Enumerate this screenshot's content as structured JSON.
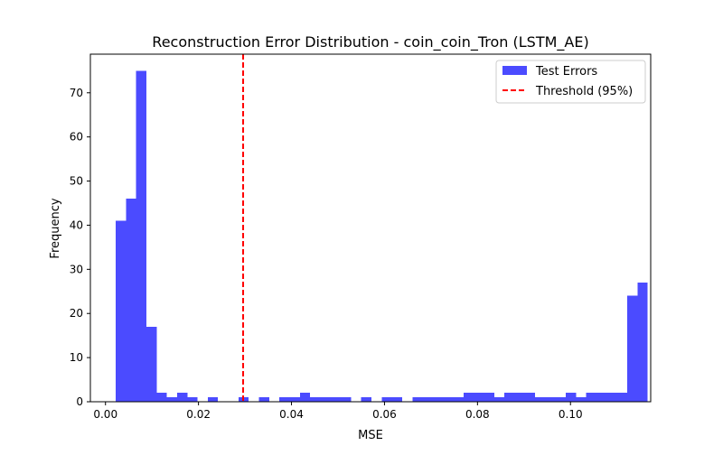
{
  "chart_data": {
    "type": "bar",
    "title": "Reconstruction Error Distribution - coin_coin_Tron (LSTM_AE)",
    "xlabel": "MSE",
    "ylabel": "Frequency",
    "xlim": [
      -0.00325,
      0.11725
    ],
    "ylim": [
      0,
      78.75
    ],
    "xticks": [
      0.0,
      0.02,
      0.04,
      0.06,
      0.08,
      0.1
    ],
    "xtick_labels": [
      "0.00",
      "0.02",
      "0.04",
      "0.06",
      "0.08",
      "0.10"
    ],
    "yticks": [
      0,
      10,
      20,
      30,
      40,
      50,
      60,
      70
    ],
    "ytick_labels": [
      "0",
      "10",
      "20",
      "30",
      "40",
      "50",
      "60",
      "70"
    ],
    "grid": false,
    "legend_position": "top-right",
    "series": [
      {
        "name": "Test Errors",
        "type": "histogram",
        "color": "#4b4bff",
        "bin_start": 0.0022,
        "bin_width": 0.0022,
        "counts": [
          41,
          46,
          75,
          17,
          2,
          1,
          2,
          1,
          0,
          1,
          0,
          0,
          1,
          0,
          1,
          0,
          1,
          1,
          2,
          1,
          1,
          1,
          1,
          0,
          1,
          0,
          1,
          1,
          0,
          1,
          1,
          1,
          1,
          1,
          2,
          2,
          2,
          1,
          2,
          2,
          2,
          1,
          1,
          1,
          2,
          1,
          2,
          2,
          2,
          2,
          24,
          27
        ]
      },
      {
        "name": "Threshold (95%)",
        "type": "vline",
        "color": "#ff0000",
        "x": 0.0296
      }
    ]
  }
}
